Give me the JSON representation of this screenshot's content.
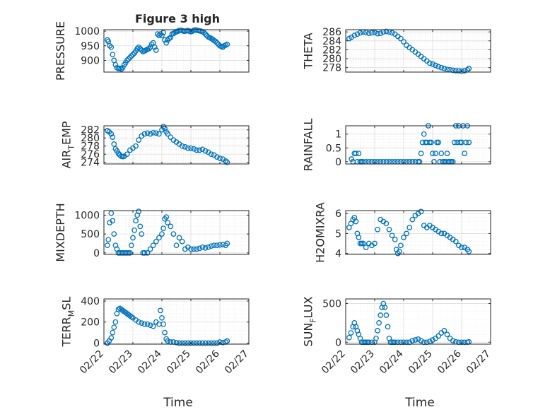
{
  "figure": {
    "title": "Figure 3 high"
  },
  "colors": {
    "marker": "#0072BD",
    "axis": "#262626"
  },
  "x_axis": {
    "label": "Time",
    "ticks": [
      "02/22",
      "02/23",
      "02/24",
      "02/25",
      "02/26",
      "02/27"
    ]
  },
  "chart_data": [
    {
      "type": "scatter",
      "ylabel": "PRESSURE",
      "ylabel_sub": "",
      "xlim": [
        0,
        5
      ],
      "ylim": [
        860,
        1005
      ],
      "yticks": [
        900,
        950,
        1000
      ],
      "x": [
        0.12,
        0.15,
        0.2,
        0.25,
        0.3,
        0.35,
        0.4,
        0.45,
        0.5,
        0.55,
        0.6,
        0.65,
        0.7,
        0.75,
        0.8,
        0.85,
        0.9,
        0.95,
        1.0,
        1.05,
        1.1,
        1.15,
        1.2,
        1.25,
        1.3,
        1.35,
        1.4,
        1.45,
        1.5,
        1.55,
        1.6,
        1.65,
        1.7,
        1.75,
        1.8,
        1.85,
        1.9,
        1.95,
        2.0,
        2.05,
        2.1,
        2.15,
        2.2,
        2.25,
        2.3,
        2.35,
        2.4,
        2.45,
        2.5,
        2.55,
        2.6,
        2.65,
        2.7,
        2.75,
        2.8,
        2.85,
        2.9,
        2.95,
        3.0,
        3.05,
        3.1,
        3.15,
        3.2,
        3.25,
        3.3,
        3.35,
        3.4,
        3.45,
        3.5,
        3.55,
        3.6,
        3.65,
        3.7,
        3.75,
        3.8,
        3.85,
        3.9,
        3.95,
        4.0,
        4.05,
        4.1,
        4.15,
        4.2,
        4.25
      ],
      "y": [
        970,
        965,
        950,
        945,
        920,
        900,
        885,
        875,
        872,
        873,
        870,
        875,
        885,
        892,
        900,
        905,
        910,
        915,
        920,
        925,
        932,
        940,
        945,
        940,
        935,
        930,
        932,
        935,
        938,
        940,
        945,
        955,
        960,
        945,
        935,
        990,
        985,
        990,
        985,
        995,
        970,
        960,
        970,
        975,
        978,
        990,
        992,
        995,
        998,
        1000,
        1002,
        1003,
        1002,
        1000,
        1000,
        1001,
        1002,
        1000,
        998,
        1000,
        1003,
        1004,
        1003,
        1002,
        1001,
        1000,
        998,
        995,
        990,
        985,
        980,
        978,
        975,
        972,
        968,
        965,
        960,
        955,
        950,
        948,
        945,
        950,
        952,
        955
      ]
    },
    {
      "type": "scatter",
      "ylabel": "THETA",
      "ylabel_sub": "",
      "xlim": [
        0,
        5
      ],
      "ylim": [
        277,
        286.5
      ],
      "yticks": [
        278,
        280,
        282,
        284,
        286
      ],
      "x": [
        0.12,
        0.2,
        0.3,
        0.4,
        0.5,
        0.6,
        0.7,
        0.8,
        0.9,
        1.0,
        1.1,
        1.2,
        1.3,
        1.4,
        1.5,
        1.6,
        1.7,
        1.8,
        1.9,
        2.0,
        2.1,
        2.2,
        2.3,
        2.4,
        2.5,
        2.6,
        2.7,
        2.8,
        2.9,
        3.0,
        3.1,
        3.2,
        3.3,
        3.4,
        3.5,
        3.6,
        3.7,
        3.8,
        3.9,
        4.0,
        4.1,
        4.2,
        4.25
      ],
      "y": [
        284.5,
        284.8,
        285.2,
        285.5,
        285.8,
        286.0,
        285.9,
        285.7,
        285.8,
        285.9,
        285.6,
        285.7,
        286.0,
        286.1,
        286.0,
        285.8,
        285.5,
        285.0,
        284.5,
        283.8,
        283.0,
        282.5,
        282.0,
        281.5,
        281.0,
        280.5,
        280.0,
        279.5,
        279.0,
        278.8,
        278.5,
        278.2,
        278.0,
        277.8,
        277.6,
        277.5,
        277.4,
        277.3,
        277.3,
        277.2,
        277.3,
        277.5,
        277.8
      ]
    },
    {
      "type": "scatter",
      "ylabel": "AIR",
      "ylabel_sub": "T",
      "ylabel_rest": "EMP",
      "xlim": [
        0,
        5
      ],
      "ylim": [
        273.6,
        283
      ],
      "yticks": [
        274,
        276,
        278,
        280,
        282
      ],
      "x": [
        0.12,
        0.18,
        0.25,
        0.3,
        0.35,
        0.4,
        0.45,
        0.5,
        0.55,
        0.6,
        0.65,
        0.7,
        0.8,
        0.9,
        1.0,
        1.1,
        1.2,
        1.3,
        1.4,
        1.5,
        1.6,
        1.7,
        1.8,
        1.9,
        2.0,
        2.05,
        2.1,
        2.15,
        2.2,
        2.3,
        2.4,
        2.5,
        2.6,
        2.7,
        2.8,
        2.9,
        3.0,
        3.1,
        3.2,
        3.3,
        3.4,
        3.5,
        3.6,
        3.7,
        3.8,
        3.9,
        4.0,
        4.1,
        4.2,
        4.25
      ],
      "y": [
        281.8,
        281.5,
        281.0,
        280.2,
        278.5,
        277.3,
        276.8,
        276.2,
        275.8,
        275.5,
        275.4,
        275.5,
        276.0,
        277.0,
        277.5,
        278.0,
        279.5,
        280.5,
        281.0,
        281.2,
        281.0,
        281.3,
        281.2,
        281.0,
        282.0,
        282.8,
        282.3,
        281.5,
        281.0,
        280.2,
        279.5,
        279.0,
        278.5,
        278.0,
        277.8,
        277.5,
        277.5,
        277.3,
        277.0,
        277.0,
        277.2,
        276.8,
        276.5,
        276.0,
        275.8,
        275.3,
        275.0,
        274.8,
        274.3,
        274.0
      ]
    },
    {
      "type": "scatter",
      "ylabel": "RAINFALL",
      "ylabel_sub": "",
      "xlim": [
        0,
        5
      ],
      "ylim": [
        -0.08,
        1.3
      ],
      "yticks": [
        0,
        0.5,
        1
      ],
      "x": [
        0.2,
        0.25,
        0.3,
        0.35,
        0.4,
        0.45,
        0.5,
        0.55,
        0.6,
        0.7,
        0.8,
        0.9,
        1.0,
        1.1,
        1.2,
        1.3,
        1.4,
        1.5,
        1.6,
        1.7,
        1.8,
        1.9,
        2.0,
        2.1,
        2.2,
        2.3,
        2.4,
        2.5,
        2.55,
        2.6,
        2.65,
        2.7,
        2.75,
        2.8,
        2.85,
        2.9,
        2.95,
        3.0,
        3.05,
        3.1,
        3.15,
        3.2,
        3.25,
        3.3,
        3.35,
        3.4,
        3.45,
        3.5,
        3.55,
        3.6,
        3.65,
        3.7,
        3.75,
        3.8,
        3.85,
        3.9,
        3.95,
        4.0,
        4.05,
        4.1,
        4.15,
        4.2,
        4.25
      ],
      "y": [
        0.1,
        0,
        0.3,
        0.3,
        0,
        0.3,
        0,
        0,
        0,
        0,
        0,
        0,
        0,
        0,
        0,
        0,
        0,
        0,
        0,
        0,
        0,
        0,
        0,
        0,
        0,
        0,
        0,
        0,
        0,
        0.3,
        0.7,
        1.0,
        0.7,
        0.7,
        1.3,
        0.7,
        0.7,
        0.3,
        0,
        0.3,
        0.7,
        0.7,
        0,
        0.3,
        0,
        0,
        0,
        0.3,
        0,
        0,
        0,
        0,
        0.7,
        1.3,
        0.7,
        1.3,
        0.7,
        0.7,
        1.3,
        0.3,
        0.7,
        1.3,
        0.7
      ]
    },
    {
      "type": "scatter",
      "ylabel": "MIXDEPTH",
      "ylabel_sub": "",
      "xlim": [
        0,
        5
      ],
      "ylim": [
        -40,
        1120
      ],
      "yticks": [
        0,
        500,
        1000
      ],
      "x": [
        0.12,
        0.15,
        0.2,
        0.25,
        0.3,
        0.35,
        0.4,
        0.45,
        0.5,
        0.55,
        0.6,
        0.65,
        0.7,
        0.75,
        0.8,
        0.85,
        0.9,
        0.95,
        1.0,
        1.05,
        1.1,
        1.15,
        1.2,
        1.25,
        1.3,
        1.35,
        1.4,
        1.5,
        1.6,
        1.7,
        1.8,
        1.9,
        2.0,
        2.05,
        2.1,
        2.15,
        2.2,
        2.3,
        2.4,
        2.5,
        2.6,
        2.7,
        2.8,
        2.9,
        3.0,
        3.1,
        3.2,
        3.3,
        3.4,
        3.5,
        3.6,
        3.7,
        3.8,
        3.9,
        4.0,
        4.1,
        4.2,
        4.25
      ],
      "y": [
        200,
        350,
        800,
        1050,
        850,
        500,
        200,
        100,
        0,
        0,
        0,
        0,
        0,
        0,
        0,
        0,
        0,
        200,
        400,
        600,
        850,
        1000,
        1100,
        700,
        500,
        0,
        0,
        0,
        100,
        200,
        300,
        400,
        500,
        650,
        900,
        950,
        800,
        700,
        500,
        200,
        400,
        300,
        100,
        150,
        100,
        100,
        100,
        120,
        150,
        130,
        150,
        180,
        200,
        200,
        210,
        220,
        200,
        250
      ]
    },
    {
      "type": "scatter",
      "ylabel": "H2OMIXRA",
      "ylabel_sub": "",
      "xlim": [
        0,
        5
      ],
      "ylim": [
        3.95,
        6.15
      ],
      "yticks": [
        4,
        5,
        6
      ],
      "x": [
        0.12,
        0.18,
        0.25,
        0.3,
        0.35,
        0.4,
        0.45,
        0.5,
        0.55,
        0.6,
        0.7,
        0.8,
        0.9,
        1.0,
        1.1,
        1.2,
        1.3,
        1.4,
        1.5,
        1.6,
        1.7,
        1.75,
        1.8,
        1.85,
        1.9,
        2.0,
        2.1,
        2.2,
        2.3,
        2.4,
        2.5,
        2.6,
        2.7,
        2.8,
        2.9,
        3.0,
        3.1,
        3.2,
        3.3,
        3.4,
        3.5,
        3.6,
        3.7,
        3.8,
        3.9,
        4.0,
        4.1,
        4.2,
        4.25
      ],
      "y": [
        5.3,
        5.5,
        5.7,
        5.8,
        5.6,
        5.0,
        4.8,
        4.5,
        4.5,
        4.5,
        4.3,
        4.5,
        4.4,
        4.5,
        5.2,
        5.7,
        5.6,
        5.5,
        5.2,
        4.9,
        4.7,
        4.2,
        4.0,
        4.1,
        4.4,
        4.8,
        5.0,
        5.3,
        5.7,
        5.9,
        6.0,
        6.1,
        5.4,
        5.3,
        5.4,
        5.3,
        5.2,
        5.1,
        5.0,
        5.0,
        4.9,
        4.8,
        4.7,
        4.6,
        4.4,
        4.3,
        4.3,
        4.2,
        4.1
      ]
    },
    {
      "type": "scatter",
      "ylabel": "TERR",
      "ylabel_sub": "M",
      "ylabel_rest": "SL",
      "xlim": [
        0,
        5
      ],
      "ylim": [
        -10,
        420
      ],
      "yticks": [
        0,
        200,
        400
      ],
      "x": [
        0.12,
        0.18,
        0.25,
        0.3,
        0.35,
        0.4,
        0.45,
        0.5,
        0.55,
        0.6,
        0.65,
        0.7,
        0.75,
        0.8,
        0.85,
        0.9,
        0.95,
        1.0,
        1.1,
        1.2,
        1.3,
        1.4,
        1.5,
        1.6,
        1.7,
        1.8,
        1.9,
        1.95,
        2.0,
        2.05,
        2.1,
        2.15,
        2.2,
        2.3,
        2.4,
        2.5,
        2.6,
        2.7,
        2.8,
        2.9,
        3.0,
        3.1,
        3.2,
        3.3,
        3.4,
        3.5,
        3.6,
        3.7,
        3.8,
        3.9,
        4.0,
        4.1,
        4.2,
        4.25
      ],
      "y": [
        0,
        20,
        50,
        100,
        150,
        200,
        280,
        320,
        330,
        320,
        310,
        300,
        290,
        280,
        270,
        260,
        250,
        240,
        220,
        200,
        190,
        180,
        180,
        170,
        160,
        200,
        180,
        310,
        240,
        180,
        100,
        40,
        20,
        10,
        10,
        5,
        0,
        0,
        0,
        0,
        0,
        0,
        0,
        0,
        0,
        0,
        0,
        0,
        0,
        0,
        10,
        5,
        10,
        20
      ]
    },
    {
      "type": "scatter",
      "ylabel": "SUN",
      "ylabel_sub": "F",
      "ylabel_rest": "LUX",
      "xlim": [
        0,
        5
      ],
      "ylim": [
        -25,
        560
      ],
      "yticks": [
        0,
        500
      ],
      "x": [
        0.12,
        0.18,
        0.25,
        0.3,
        0.35,
        0.4,
        0.45,
        0.5,
        0.55,
        0.6,
        0.65,
        0.7,
        0.75,
        0.8,
        0.9,
        1.0,
        1.05,
        1.1,
        1.15,
        1.2,
        1.25,
        1.3,
        1.35,
        1.4,
        1.45,
        1.5,
        1.55,
        1.6,
        1.65,
        1.7,
        1.8,
        1.9,
        2.0,
        2.1,
        2.2,
        2.3,
        2.4,
        2.5,
        2.6,
        2.7,
        2.8,
        2.9,
        3.0,
        3.1,
        3.2,
        3.3,
        3.4,
        3.5,
        3.6,
        3.7,
        3.8,
        3.9,
        4.0,
        4.1,
        4.2,
        4.25
      ],
      "y": [
        60,
        120,
        200,
        250,
        200,
        150,
        100,
        50,
        0,
        0,
        0,
        0,
        0,
        0,
        0,
        0,
        50,
        150,
        250,
        350,
        450,
        500,
        450,
        350,
        200,
        50,
        0,
        0,
        0,
        0,
        0,
        0,
        0,
        0,
        0,
        20,
        30,
        40,
        20,
        0,
        0,
        10,
        30,
        50,
        80,
        120,
        150,
        100,
        50,
        20,
        5,
        0,
        0,
        0,
        0,
        5
      ]
    }
  ]
}
